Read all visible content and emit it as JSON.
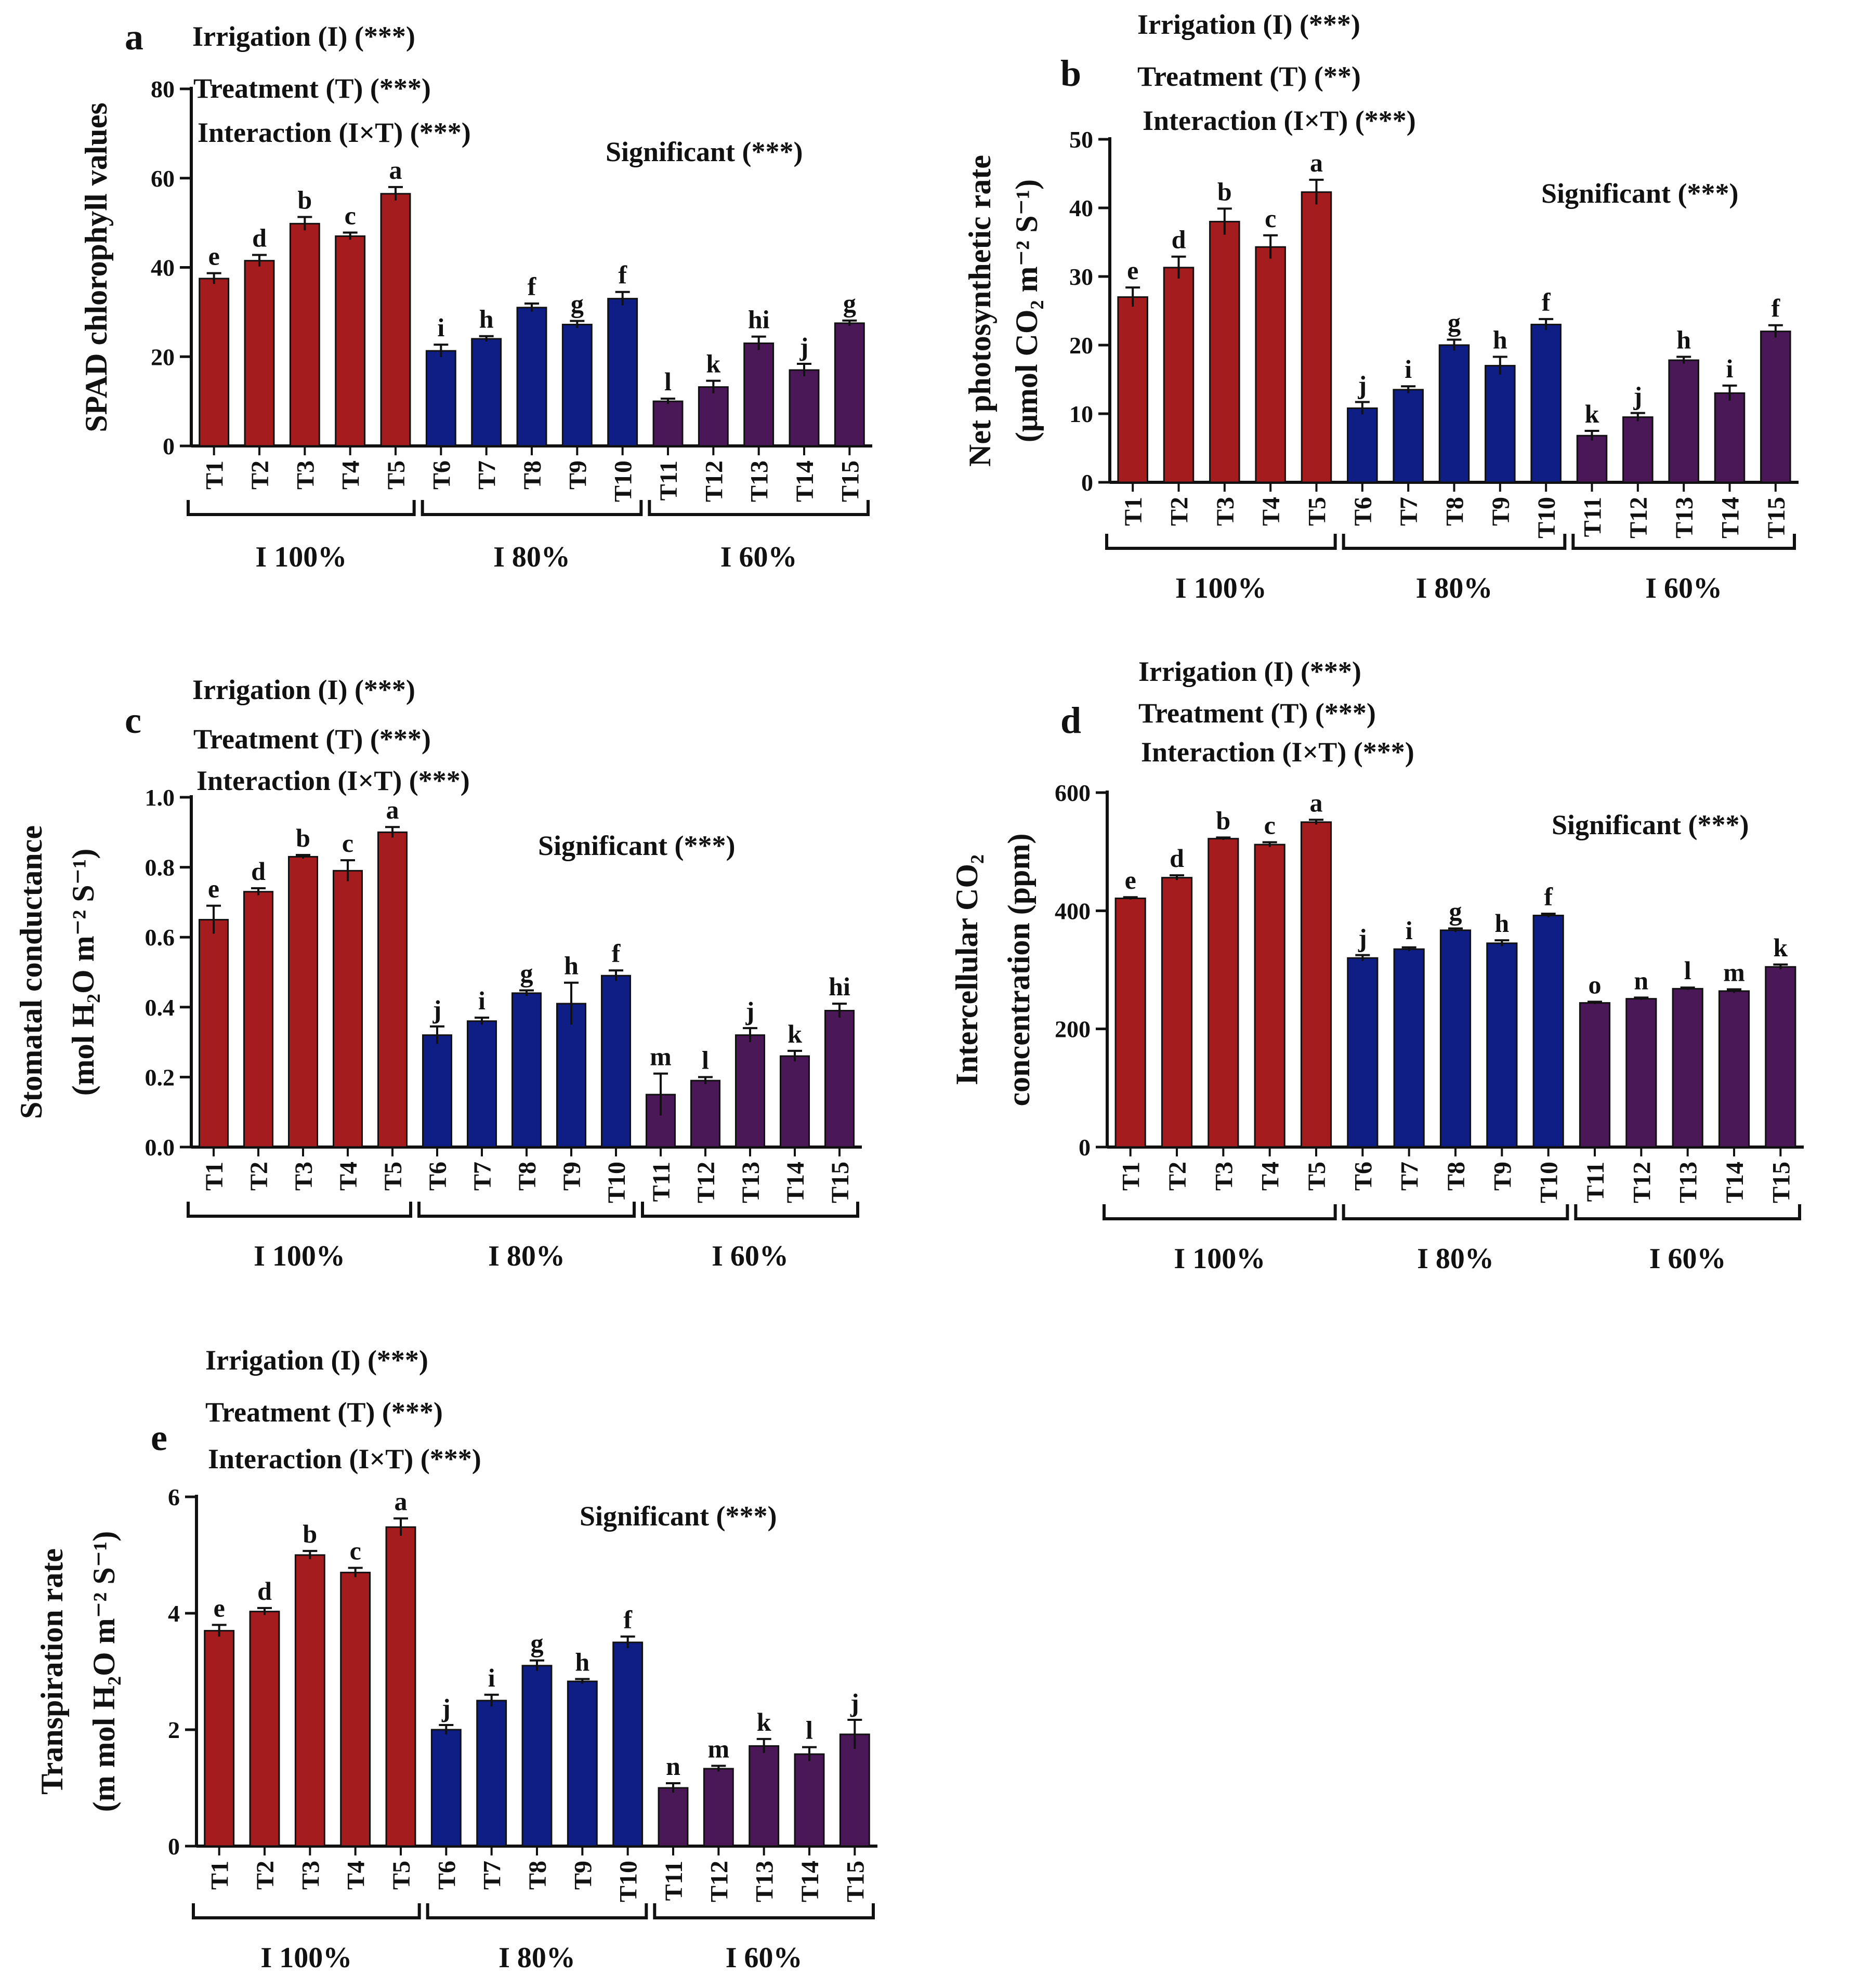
{
  "colors": {
    "i100": "#A51C1E",
    "i80": "#0E1E84",
    "i60": "#4A1757",
    "axis": "#111111"
  },
  "chart_data": [
    {
      "type": "bar",
      "panel": "a",
      "categories": [
        "T1",
        "T2",
        "T3",
        "T4",
        "T5",
        "T6",
        "T7",
        "T8",
        "T9",
        "T10",
        "T11",
        "T12",
        "T13",
        "T14",
        "T15"
      ],
      "values": [
        37.5,
        41.5,
        49.8,
        47,
        56.5,
        21.3,
        24,
        31,
        27.2,
        33,
        10,
        13.2,
        23,
        17,
        27.5
      ],
      "errors": [
        1.2,
        1.3,
        1.5,
        0.8,
        1.5,
        1.4,
        0.6,
        0.9,
        0.8,
        1.5,
        0.6,
        1.4,
        1.5,
        1.4,
        0.6
      ],
      "letters": [
        "e",
        "d",
        "b",
        "c",
        "a",
        "i",
        "h",
        "f",
        "g",
        "f",
        "l",
        "k",
        "hi",
        "j",
        "g"
      ],
      "ylim": [
        0,
        80
      ],
      "yticks": [
        0,
        20,
        40,
        60,
        80
      ],
      "ytick_labels": [
        "0",
        "20",
        "40",
        "60",
        "80"
      ],
      "ylabel_lines": [
        "SPAD chlorophyll values"
      ],
      "groups": [
        "I 100%",
        "I 80%",
        "I 60%"
      ],
      "annotations": [
        "Irrigation (I) (***)",
        "Treatment (T) (***)",
        "Interaction (I×T) (***)"
      ],
      "significance": "Significant (***)"
    },
    {
      "type": "bar",
      "panel": "b",
      "categories": [
        "T1",
        "T2",
        "T3",
        "T4",
        "T5",
        "T6",
        "T7",
        "T8",
        "T9",
        "T10",
        "T11",
        "T12",
        "T13",
        "T14",
        "T15"
      ],
      "values": [
        27,
        31.3,
        38,
        34.3,
        42.3,
        10.8,
        13.5,
        20,
        17,
        23,
        6.8,
        9.5,
        17.8,
        13,
        22
      ],
      "errors": [
        1.4,
        1.6,
        1.9,
        1.7,
        1.8,
        0.9,
        0.5,
        0.8,
        1.3,
        0.8,
        0.7,
        0.6,
        0.5,
        1.1,
        0.9
      ],
      "letters": [
        "e",
        "d",
        "b",
        "c",
        "a",
        "j",
        "i",
        "g",
        "h",
        "f",
        "k",
        "j",
        "h",
        "i",
        "f"
      ],
      "ylim": [
        0,
        50
      ],
      "yticks": [
        0,
        10,
        20,
        30,
        40,
        50
      ],
      "ytick_labels": [
        "0",
        "10",
        "20",
        "30",
        "40",
        "50"
      ],
      "ylabel_lines": [
        "Net photosynthetic rate",
        "(μmol CO₂ m⁻² S⁻¹)"
      ],
      "groups": [
        "I 100%",
        "I 80%",
        "I 60%"
      ],
      "annotations": [
        "Irrigation (I) (***)",
        "Treatment (T) (**)",
        "Interaction (I×T) (***)"
      ],
      "significance": "Significant (***)"
    },
    {
      "type": "bar",
      "panel": "c",
      "categories": [
        "T1",
        "T2",
        "T3",
        "T4",
        "T5",
        "T6",
        "T7",
        "T8",
        "T9",
        "T10",
        "T11",
        "T12",
        "T13",
        "T14",
        "T15"
      ],
      "values": [
        0.65,
        0.73,
        0.83,
        0.79,
        0.9,
        0.32,
        0.36,
        0.44,
        0.41,
        0.49,
        0.15,
        0.19,
        0.32,
        0.26,
        0.39
      ],
      "errors": [
        0.04,
        0.01,
        0.005,
        0.03,
        0.015,
        0.025,
        0.01,
        0.008,
        0.06,
        0.015,
        0.06,
        0.01,
        0.02,
        0.015,
        0.02
      ],
      "letters": [
        "e",
        "d",
        "b",
        "c",
        "a",
        "j",
        "i",
        "g",
        "h",
        "f",
        "m",
        "l",
        "j",
        "k",
        "hi"
      ],
      "ylim": [
        0,
        1.0
      ],
      "yticks": [
        0,
        0.2,
        0.4,
        0.6,
        0.8,
        1.0
      ],
      "ytick_labels": [
        "0.0",
        "0.2",
        "0.4",
        "0.6",
        "0.8",
        "1.0"
      ],
      "ylabel_lines": [
        "Stomatal conductance",
        "(mol H₂O m⁻² S⁻¹)"
      ],
      "groups": [
        "I 100%",
        "I 80%",
        "I 60%"
      ],
      "annotations": [
        "Irrigation (I) (***)",
        "Treatment (T) (***)",
        "Interaction (I×T) (***)"
      ],
      "significance": "Significant (***)"
    },
    {
      "type": "bar",
      "panel": "d",
      "categories": [
        "T1",
        "T2",
        "T3",
        "T4",
        "T5",
        "T6",
        "T7",
        "T8",
        "T9",
        "T10",
        "T11",
        "T12",
        "T13",
        "T14",
        "T15"
      ],
      "values": [
        421,
        456,
        522,
        512,
        550,
        320,
        335,
        367,
        345,
        392,
        244,
        251,
        268,
        264,
        305
      ],
      "errors": [
        2,
        4,
        2,
        4,
        4,
        5,
        3,
        3,
        5,
        3,
        2,
        2,
        2,
        3,
        4
      ],
      "letters": [
        "e",
        "d",
        "b",
        "c",
        "a",
        "j",
        "i",
        "g",
        "h",
        "f",
        "o",
        "n",
        "l",
        "m",
        "k"
      ],
      "ylim": [
        0,
        600
      ],
      "yticks": [
        0,
        200,
        400,
        600
      ],
      "ytick_labels": [
        "0",
        "200",
        "400",
        "600"
      ],
      "ylabel_lines": [
        "Intercellular CO₂",
        "concentration (ppm)"
      ],
      "groups": [
        "I 100%",
        "I 80%",
        "I 60%"
      ],
      "annotations": [
        "Irrigation (I) (***)",
        "Treatment (T) (***)",
        "Interaction (I×T) (***)"
      ],
      "significance": "Significant (***)"
    },
    {
      "type": "bar",
      "panel": "e",
      "categories": [
        "T1",
        "T2",
        "T3",
        "T4",
        "T5",
        "T6",
        "T7",
        "T8",
        "T9",
        "T10",
        "T11",
        "T12",
        "T13",
        "T14",
        "T15"
      ],
      "values": [
        3.7,
        4.03,
        5.0,
        4.7,
        5.48,
        2.0,
        2.5,
        3.1,
        2.83,
        3.5,
        1.0,
        1.33,
        1.72,
        1.58,
        1.92
      ],
      "errors": [
        0.1,
        0.06,
        0.07,
        0.08,
        0.15,
        0.08,
        0.1,
        0.09,
        0.04,
        0.1,
        0.08,
        0.05,
        0.12,
        0.12,
        0.25
      ],
      "letters": [
        "e",
        "d",
        "b",
        "c",
        "a",
        "j",
        "i",
        "g",
        "h",
        "f",
        "n",
        "m",
        "k",
        "l",
        "j"
      ],
      "ylim": [
        0,
        6
      ],
      "yticks": [
        0,
        2,
        4,
        6
      ],
      "ytick_labels": [
        "0",
        "2",
        "4",
        "6"
      ],
      "ylabel_lines": [
        "Transpiration rate",
        "(m mol H₂O m⁻² S⁻¹)"
      ],
      "groups": [
        "I 100%",
        "I 80%",
        "I 60%"
      ],
      "annotations": [
        "Irrigation (I) (***)",
        "Treatment (T) (***)",
        "Interaction (I×T) (***)"
      ],
      "significance": "Significant (***)"
    }
  ]
}
